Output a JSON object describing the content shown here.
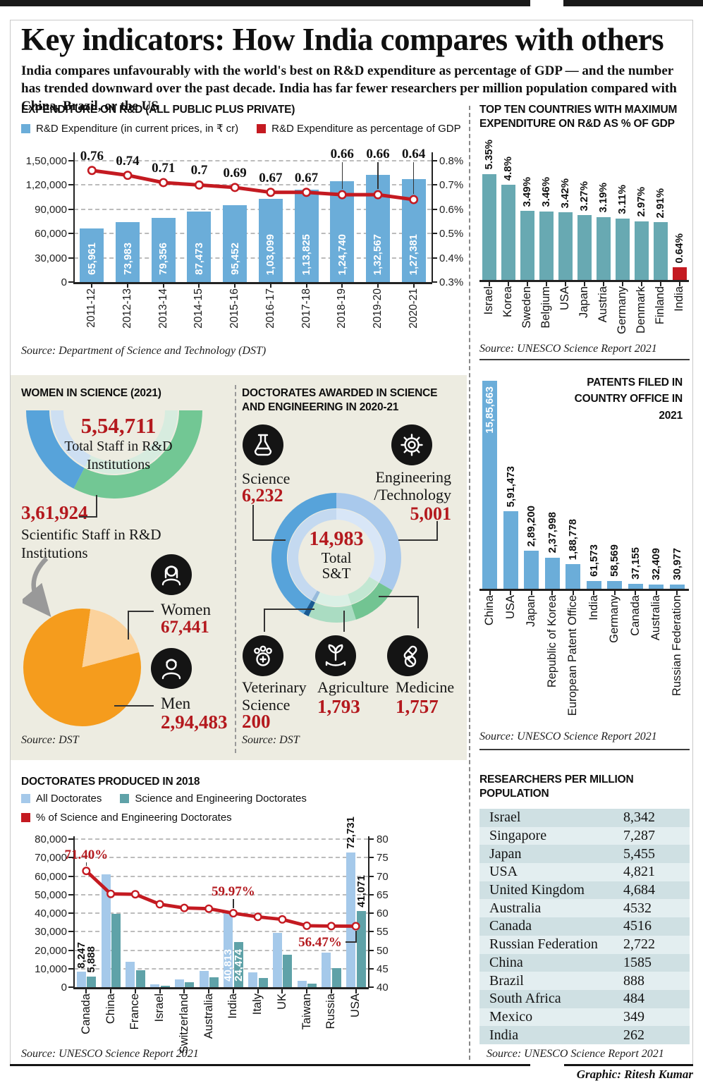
{
  "page": {
    "title": "Key indicators: How India compares with others",
    "subtitle": "India compares unfavourably with the world's best on R&D expenditure as percentage of GDP — and the number has trended downward over the past decade. India has far fewer researchers per million population compared with China, Brazil, or the US",
    "credit": "Graphic: Ritesh Kumar"
  },
  "colors": {
    "accent_red": "#b4191e",
    "line_red": "#c41a21",
    "bar_blue": "#6badd9",
    "bar_teal": "#68a9b2",
    "all_doc_blue": "#a5c9ea",
    "se_doc_teal": "#5fa2a8",
    "beige": "#edece1",
    "orange": "#f59c1d",
    "light_orange": "#fbd29c",
    "gauge_blue": "#57a3da",
    "gauge_green": "#72c794",
    "gauge_blue_light": "#cddff2",
    "gauge_green_light": "#d7ecdf",
    "donut_science": "#57a3da",
    "donut_eng": "#a9c9ec",
    "donut_medicine": "#72c492",
    "donut_agriculture": "#aadcc2",
    "donut_vet": "#1a5a92",
    "donut_science_l": "#c4d9f0",
    "donut_eng_l": "#d8e6f7",
    "donut_medicine_l": "#c2e7d2",
    "donut_agriculture_l": "#daf0e5",
    "donut_vet_l": "#96badb",
    "table_row_dark": "#cfe0e3",
    "table_row_light": "#e3eef0"
  },
  "icons": {
    "women": "woman-icon",
    "men": "man-icon",
    "science": "flask-icon",
    "engineering": "gear-icon",
    "veterinary": "paw-cross-icon",
    "agriculture": "sprout-hand-icon",
    "medicine": "pills-icon"
  },
  "chart_data": [
    {
      "id": "rnd_expenditure",
      "type": "bar+line",
      "title": "EXPENDITURE ON R&D (ALL PUBLIC PLUS PRIVATE)",
      "legend": [
        "R&D Expenditure (in current prices, in ₹ cr)",
        "R&D Expenditure as percentage of GDP"
      ],
      "categories": [
        "2011-12",
        "2012-13",
        "2013-14",
        "2014-15",
        "2015-16",
        "2016-17",
        "2017-18",
        "2018-19",
        "2019-20",
        "2020-21"
      ],
      "bar_values": [
        65961,
        73983,
        79356,
        87473,
        95452,
        103099,
        113825,
        124740,
        132567,
        127381
      ],
      "bar_values_display": [
        "65,961",
        "73,983",
        "79,356",
        "87,473",
        "95,452",
        "1,03,099",
        "1,13,825",
        "1,24,740",
        "1,32,567",
        "1,27,381"
      ],
      "line_values": [
        0.76,
        0.74,
        0.71,
        0.7,
        0.69,
        0.67,
        0.67,
        0.66,
        0.66,
        0.64
      ],
      "line_labels": [
        "0.76",
        "0.74",
        "0.71",
        "0.7",
        "0.69",
        "0.67",
        "0.67",
        "0.66",
        "0.66",
        "0.64"
      ],
      "y_left": {
        "ticks": [
          "1,50,000",
          "1,20,000",
          "90,000",
          "60,000",
          "30,000",
          "0"
        ],
        "max": 150000
      },
      "y_right": {
        "ticks": [
          "0.8%",
          "0.7%",
          "0.6%",
          "0.5%",
          "0.4%",
          "0.3%"
        ],
        "min": 0.3,
        "max": 0.8
      },
      "source": "Source: Department of Science and Technology (DST)"
    },
    {
      "id": "top_ten_rnd_gdp",
      "type": "bar",
      "title": "TOP TEN COUNTRIES WITH MAXIMUM EXPENDITURE ON R&D AS % OF GDP",
      "categories": [
        "Israel",
        "Korea",
        "Sweden",
        "Belgium",
        "USA",
        "Japan",
        "Austria",
        "Germany",
        "Denmark",
        "Finland",
        "India"
      ],
      "values": [
        5.35,
        4.8,
        3.49,
        3.46,
        3.42,
        3.27,
        3.19,
        3.11,
        2.97,
        2.91,
        0.64
      ],
      "labels": [
        "5.35%",
        "4.8%",
        "3.49%",
        "3.46%",
        "3.42%",
        "3.27%",
        "3.19%",
        "3.11%",
        "2.97%",
        "2.91%",
        "0.64%"
      ],
      "highlight_index": 10,
      "source": "Source: UNESCO Science Report 2021"
    },
    {
      "id": "women_in_science_2021",
      "type": "half-donut+pie",
      "title": "WOMEN IN SCIENCE (2021)",
      "gauge": {
        "total_value": "5,54,711",
        "total_label": "Total Staff in R&D Institutions",
        "scientific_value": "3,61,924",
        "scientific_label": "Scientific Staff in R&D Institutions",
        "scientific_share": 0.652
      },
      "pie": {
        "slices": [
          {
            "label": "Women",
            "value": 67441,
            "display": "67,441"
          },
          {
            "label": "Men",
            "value": 294483,
            "display": "2,94,483"
          }
        ]
      },
      "source": "Source: DST"
    },
    {
      "id": "doctorates_awarded_2020_21",
      "type": "donut",
      "title": "DOCTORATES AWARDED IN SCIENCE AND ENGINEERING IN 2020-21",
      "center": {
        "value": "14,983",
        "label": "Total",
        "label2": "S&T"
      },
      "segments": [
        {
          "label": "Science",
          "value": 6232,
          "display": "6,232"
        },
        {
          "label": "Engineering /Technology",
          "value": 5001,
          "display": "5,001"
        },
        {
          "label": "Medicine",
          "value": 1757,
          "display": "1,757"
        },
        {
          "label": "Agriculture",
          "value": 1793,
          "display": "1,793"
        },
        {
          "label": "Veterinary Science",
          "value": 200,
          "display": "200"
        }
      ],
      "source": "Source: DST"
    },
    {
      "id": "patents_filed_2021",
      "type": "bar",
      "title": "PATENTS FILED IN COUNTRY OFFICE IN 2021",
      "categories": [
        "China",
        "USA",
        "Japan",
        "Republic of Korea",
        "European Patent Office",
        "India",
        "Germany",
        "Canada",
        "Australia",
        "Russian Federation"
      ],
      "values": [
        1585663,
        591473,
        289200,
        237998,
        188778,
        61573,
        58569,
        37155,
        32409,
        30977
      ],
      "labels": [
        "15,85,663",
        "5,91,473",
        "2,89,200",
        "2,37,998",
        "1,88,778",
        "61,573",
        "58,569",
        "37,155",
        "32,409",
        "30,977"
      ],
      "source": "Source: UNESCO Science Report 2021"
    },
    {
      "id": "doctorates_produced_2018",
      "type": "grouped-bar+line",
      "title": "DOCTORATES PRODUCED IN 2018",
      "legend": [
        "All Doctorates",
        "Science and Engineering Doctorates",
        "% of Science and Engineering Doctorates"
      ],
      "categories": [
        "Canada",
        "China",
        "France",
        "Israel",
        "Switzerland",
        "Australia",
        "India",
        "Italy",
        "UK",
        "Taiwan",
        "Russia",
        "USA"
      ],
      "series": [
        {
          "name": "All Doctorates",
          "values": [
            8247,
            61000,
            13600,
            1500,
            4100,
            8800,
            40813,
            8000,
            29500,
            3400,
            18500,
            72731
          ]
        },
        {
          "name": "Science and Engineering Doctorates",
          "values": [
            5888,
            39800,
            9000,
            900,
            2600,
            5400,
            24474,
            4800,
            17500,
            1900,
            10400,
            41071
          ]
        }
      ],
      "line": {
        "name": "% of Science and Engineering Doctorates",
        "values": [
          71.4,
          65.2,
          65.1,
          62.4,
          61.4,
          61.2,
          59.97,
          59.0,
          58.3,
          56.6,
          56.5,
          56.47
        ]
      },
      "bar_labels": [
        {
          "index": 0,
          "texts": [
            "8,247",
            "5,888"
          ],
          "placement": "above"
        },
        {
          "index": 6,
          "texts": [
            "40,813",
            "24,474"
          ],
          "placement": "inside"
        },
        {
          "index": 11,
          "texts": [
            "72,731",
            "41,071"
          ],
          "placement": "above"
        }
      ],
      "annotations": [
        {
          "index": 0,
          "text": "71.40%"
        },
        {
          "index": 6,
          "text": "59.97%"
        },
        {
          "index": 11,
          "text": "56.47%"
        }
      ],
      "y_left": {
        "ticks": [
          "80,000",
          "70,000",
          "60,000",
          "50,000",
          "40,000",
          "30,000",
          "20,000",
          "10,000",
          "0"
        ],
        "max": 80000
      },
      "y_right": {
        "ticks": [
          "80",
          "75",
          "70",
          "65",
          "60",
          "55",
          "50",
          "45",
          "40"
        ],
        "min": 40,
        "max": 80
      },
      "source": "Source: UNESCO Science Report 2021"
    },
    {
      "id": "researchers_per_million",
      "type": "table",
      "title": "RESEARCHERS PER MILLION POPULATION",
      "rows": [
        [
          "Israel",
          "8,342"
        ],
        [
          "Singapore",
          "7,287"
        ],
        [
          "Japan",
          "5,455"
        ],
        [
          "USA",
          "4,821"
        ],
        [
          "United Kingdom",
          "4,684"
        ],
        [
          "Australia",
          "4532"
        ],
        [
          "Canada",
          "4516"
        ],
        [
          "Russian Federation",
          "2,722"
        ],
        [
          "China",
          "1585"
        ],
        [
          "Brazil",
          "888"
        ],
        [
          "South Africa",
          "484"
        ],
        [
          "Mexico",
          "349"
        ],
        [
          "India",
          "262"
        ]
      ],
      "source": "Source: UNESCO Science Report 2021"
    }
  ]
}
